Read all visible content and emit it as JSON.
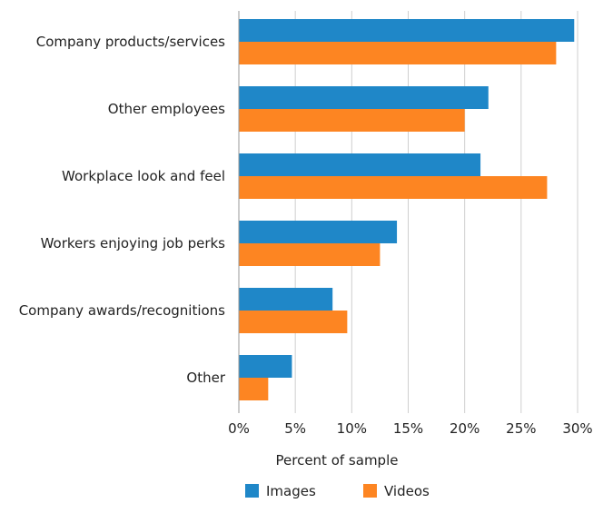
{
  "chart_data": {
    "type": "bar",
    "orientation": "horizontal",
    "categories": [
      "Company products/services",
      "Other employees",
      "Workplace look and feel",
      "Workers enjoying job perks",
      "Company awards/recognitions",
      "Other"
    ],
    "series": [
      {
        "name": "Images",
        "color": "#1f87c8",
        "values": [
          29.7,
          22.1,
          21.4,
          14.0,
          8.3,
          4.7
        ]
      },
      {
        "name": "Videos",
        "color": "#fd8522",
        "values": [
          28.1,
          20.0,
          27.3,
          12.5,
          9.6,
          2.6
        ]
      }
    ],
    "xlabel": "Percent of sample",
    "xlim": [
      0,
      30
    ],
    "xticks": [
      {
        "value": 0,
        "label": "0%"
      },
      {
        "value": 5,
        "label": "5%"
      },
      {
        "value": 10,
        "label": "10%"
      },
      {
        "value": 15,
        "label": "15%"
      },
      {
        "value": 20,
        "label": "20%"
      },
      {
        "value": 25,
        "label": "25%"
      },
      {
        "value": 30,
        "label": "30%"
      }
    ],
    "grid": "vertical",
    "legend_position": "bottom"
  }
}
